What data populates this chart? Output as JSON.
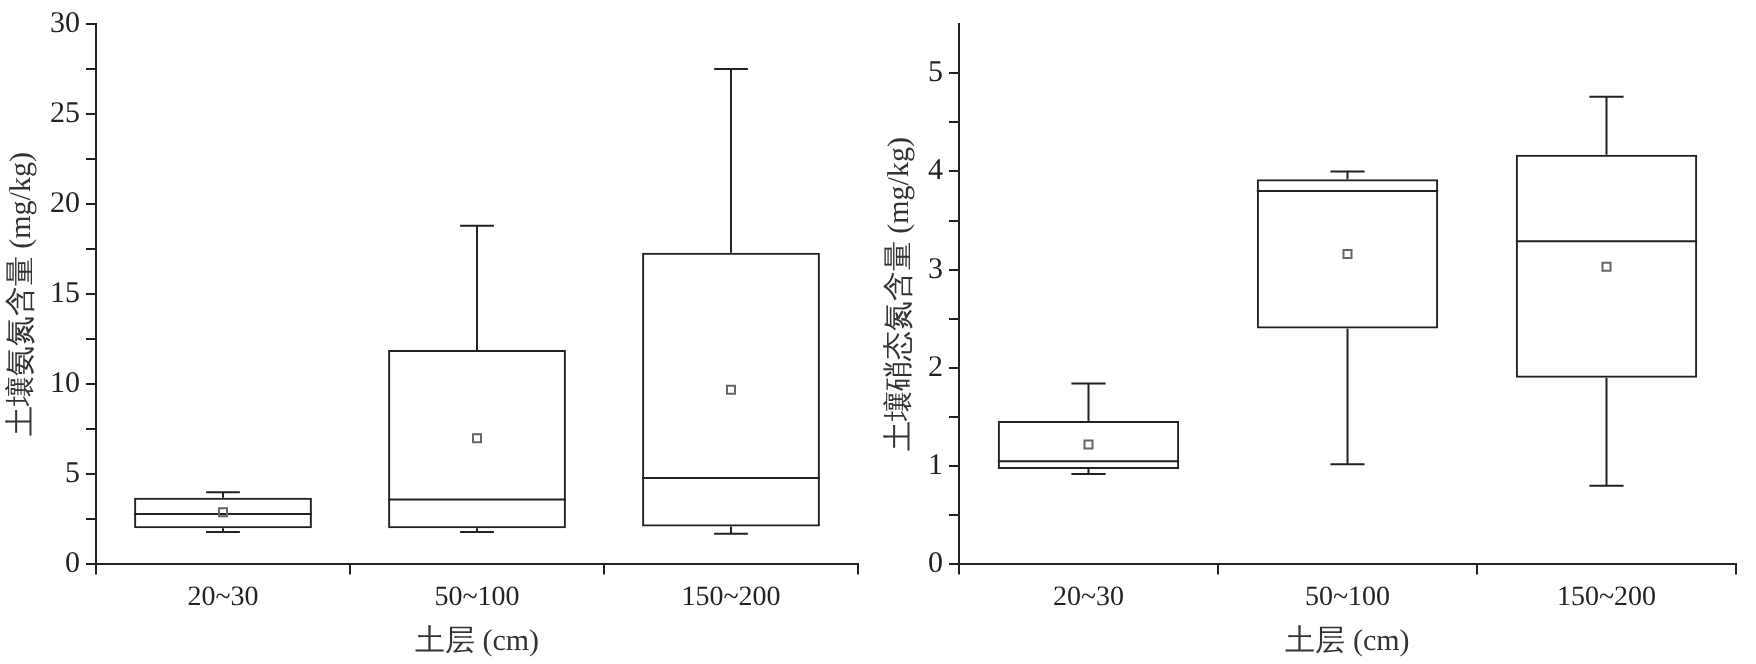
{
  "chart_data": [
    {
      "type": "box",
      "xlabel": "土层 (cm)",
      "ylabel": "土壤氨氮含量 (mg/kg)",
      "categories": [
        "20~30",
        "50~100",
        "150~200"
      ],
      "ylim": [
        0,
        30
      ],
      "yticks": [
        0,
        {
          "value": 2.5,
          "label": null
        },
        5,
        {
          "value": 7.5,
          "label": null
        },
        10,
        {
          "value": 12.5,
          "label": null
        },
        15,
        {
          "value": 17.5,
          "label": null
        },
        20,
        {
          "value": 22.5,
          "label": null
        },
        25,
        {
          "value": 27.5,
          "label": null
        },
        30
      ],
      "grid": false,
      "legend": false,
      "boxes": [
        {
          "low": 1.8,
          "q1": 2.0,
          "median": 2.8,
          "q3": 3.7,
          "high": 4.0,
          "mean": 2.9
        },
        {
          "low": 1.8,
          "q1": 2.0,
          "median": 3.6,
          "q3": 11.9,
          "high": 18.8,
          "mean": 7.0
        },
        {
          "low": 1.7,
          "q1": 2.1,
          "median": 4.8,
          "q3": 17.3,
          "high": 27.5,
          "mean": 9.7
        }
      ]
    },
    {
      "type": "box",
      "xlabel": "土层 (cm)",
      "ylabel": "土壤硝态氮含量 (mg/kg)",
      "categories": [
        "20~30",
        "50~100",
        "150~200"
      ],
      "ylim": [
        0,
        5.5
      ],
      "yticks": [
        0,
        {
          "value": 0.5,
          "label": null
        },
        1,
        {
          "value": 1.5,
          "label": null
        },
        2,
        {
          "value": 2.5,
          "label": null
        },
        3,
        {
          "value": 3.5,
          "label": null
        },
        4,
        {
          "value": 4.5,
          "label": null
        },
        5
      ],
      "grid": false,
      "legend": false,
      "boxes": [
        {
          "low": 0.92,
          "q1": 0.97,
          "median": 1.05,
          "q3": 1.46,
          "high": 1.84,
          "mean": 1.22
        },
        {
          "low": 1.02,
          "q1": 2.4,
          "median": 3.8,
          "q3": 3.92,
          "high": 4.0,
          "mean": 3.16
        },
        {
          "low": 0.8,
          "q1": 1.9,
          "median": 3.29,
          "q3": 4.17,
          "high": 4.76,
          "mean": 3.03
        }
      ]
    }
  ]
}
